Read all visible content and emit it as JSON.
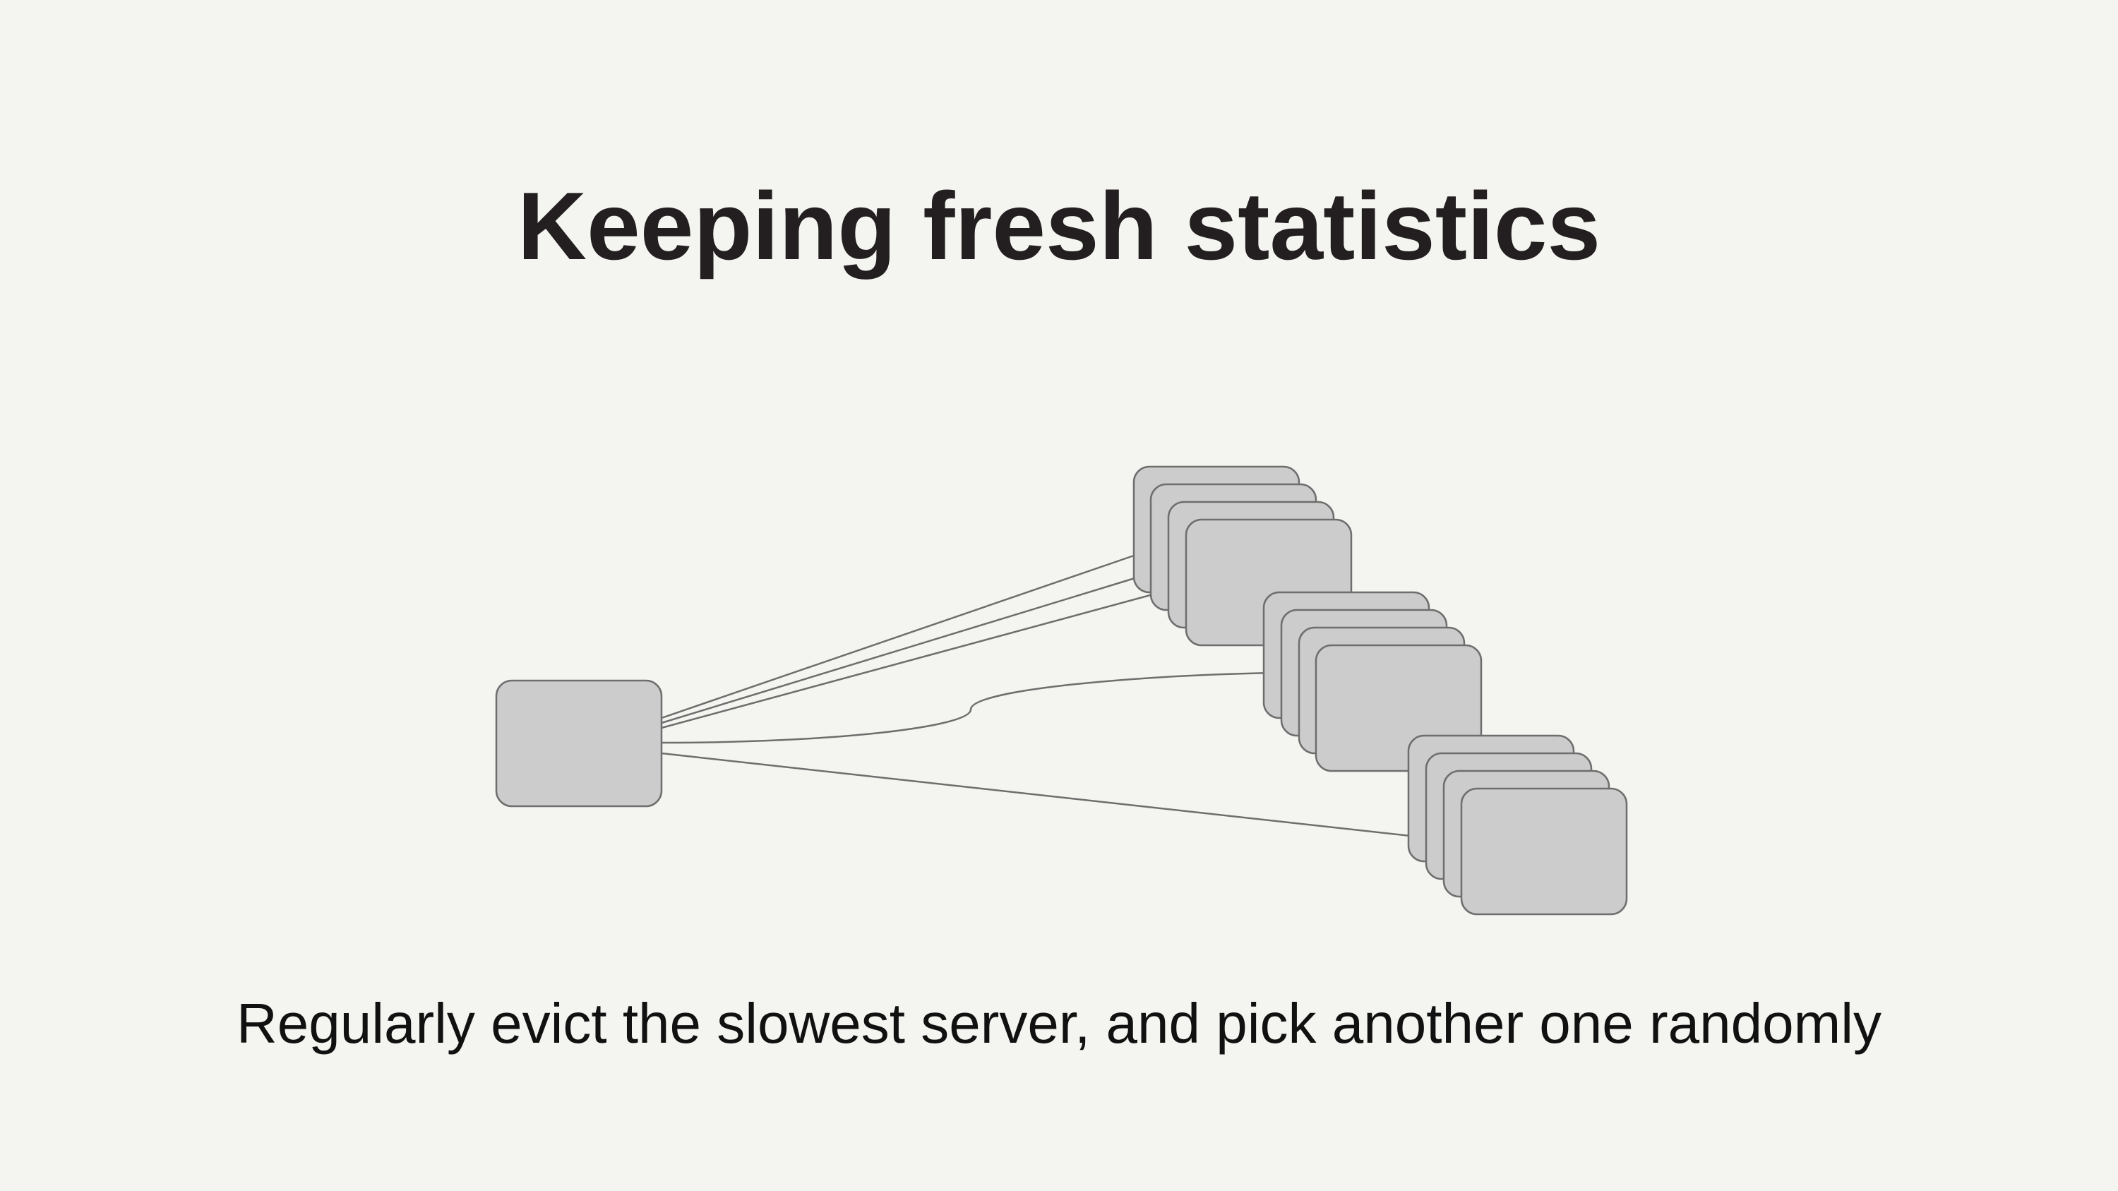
{
  "slide": {
    "title": "Keeping fresh statistics",
    "caption": "Regularly evict the slowest server, and pick another one randomly"
  },
  "colors": {
    "background": "#f4f4f0",
    "box_fill": "#cccccc",
    "box_stroke": "#6e6e6e",
    "title_text": "#231f20"
  },
  "diagram": {
    "client": {},
    "server_groups": [
      {
        "servers": 4
      },
      {
        "servers": 4
      },
      {
        "servers": 4
      }
    ]
  }
}
